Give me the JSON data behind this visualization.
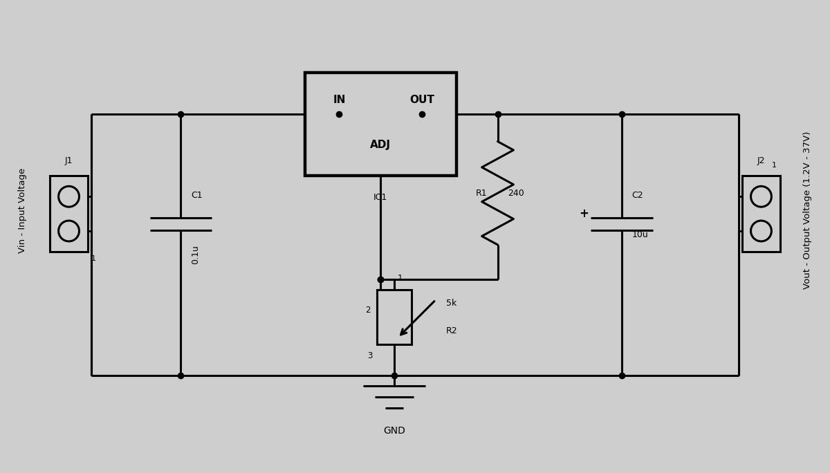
{
  "bg_color": "#cecece",
  "line_color": "#000000",
  "lw": 2.2,
  "dot_ms": 6,
  "title_left": "Vin - Input Voltage",
  "title_right": "Vout - Output Voltage (1.2V - 37V)",
  "label_j1": "J1",
  "label_j2": "J2",
  "label_c1": "C1",
  "label_c1_val": "0.1u",
  "label_c2": "C2",
  "label_c2_val": "10u",
  "label_r1": "R1",
  "label_r1_val": "240",
  "label_r2": "R2",
  "label_r2_val": "5k",
  "label_ic1": "IC1",
  "label_ic1_in": "IN",
  "label_ic1_out": "OUT",
  "label_ic1_adj": "ADJ",
  "label_gnd": "GND",
  "pin1": "1",
  "pin2": "2",
  "pin3": "3"
}
